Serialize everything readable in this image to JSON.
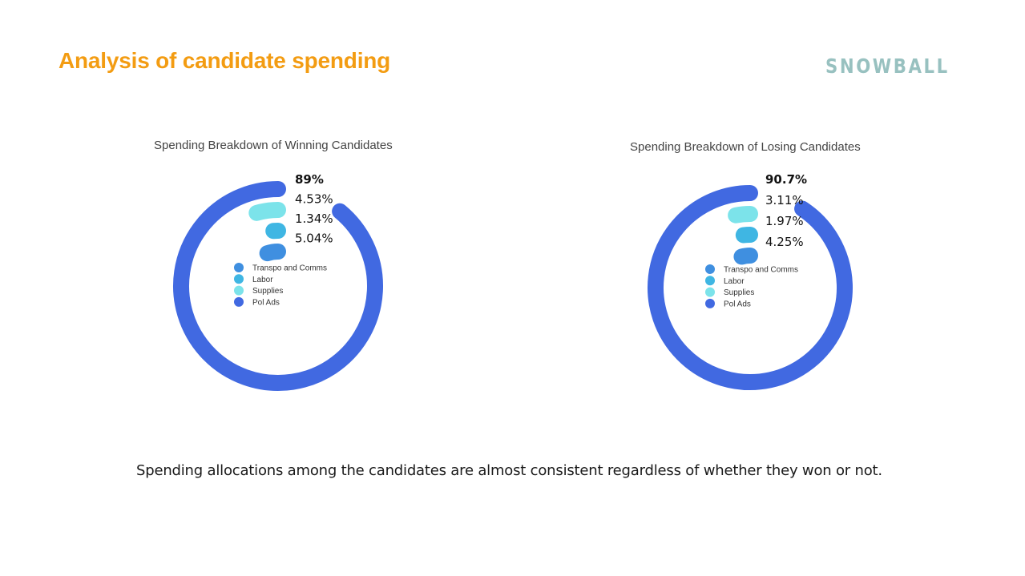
{
  "slide": {
    "title": "Analysis of candidate spending",
    "logo": "SNOWBALL",
    "summary": "Spending allocations among the candidates are almost consistent regardless of whether they won or not.",
    "colors": {
      "title": "#f39c12",
      "logo": "#98c1c0"
    }
  },
  "chart_data": [
    {
      "type": "radial_bar",
      "title": "Spending Breakdown of Winning Candidates",
      "unit": "%",
      "series": [
        {
          "name": "Pol Ads",
          "value": 89,
          "label": "89%",
          "color": "#4169e1"
        },
        {
          "name": "Supplies",
          "value": 4.53,
          "label": "4.53%",
          "color": "#7ce3ea"
        },
        {
          "name": "Labor",
          "value": 1.34,
          "label": "1.34%",
          "color": "#3fb6e3"
        },
        {
          "name": "Transpo and Comms",
          "value": 5.04,
          "label": "5.04%",
          "color": "#3f8fe0"
        }
      ],
      "legend": [
        {
          "name": "Transpo and Comms",
          "color": "#3f8fe0"
        },
        {
          "name": "Labor",
          "color": "#3fb6e3"
        },
        {
          "name": "Supplies",
          "color": "#7ce3ea"
        },
        {
          "name": "Pol Ads",
          "color": "#4169e1"
        }
      ],
      "legend_placement": "center"
    },
    {
      "type": "radial_bar",
      "title": "Spending Breakdown of Losing Candidates",
      "unit": "%",
      "series": [
        {
          "name": "Pol Ads",
          "value": 90.7,
          "label": "90.7%",
          "color": "#4169e1"
        },
        {
          "name": "Supplies",
          "value": 3.11,
          "label": "3.11%",
          "color": "#7ce3ea"
        },
        {
          "name": "Labor",
          "value": 1.97,
          "label": "1.97%",
          "color": "#3fb6e3"
        },
        {
          "name": "Transpo and Comms",
          "value": 4.25,
          "label": "4.25%",
          "color": "#3f8fe0"
        }
      ],
      "legend": [
        {
          "name": "Transpo and Comms",
          "color": "#3f8fe0"
        },
        {
          "name": "Labor",
          "color": "#3fb6e3"
        },
        {
          "name": "Supplies",
          "color": "#7ce3ea"
        },
        {
          "name": "Pol Ads",
          "color": "#4169e1"
        }
      ],
      "legend_placement": "center"
    }
  ]
}
